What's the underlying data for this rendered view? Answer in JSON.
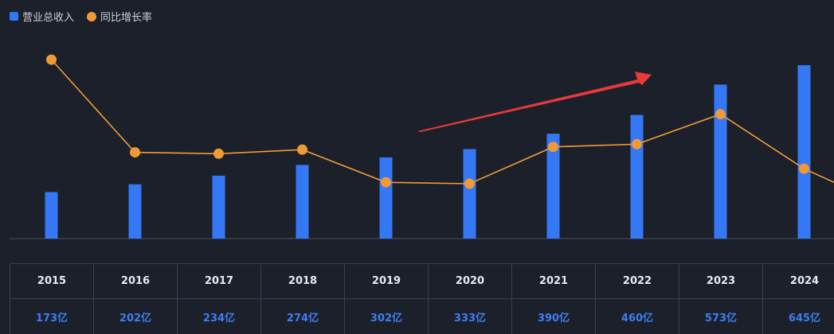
{
  "legend": {
    "revenue_label": "营业总收入",
    "growth_label": "同比增长率"
  },
  "colors": {
    "background": "#1b202b",
    "bar": "#3478f6",
    "line": "#f09a37",
    "arrow": "#e63a3a",
    "value_text": "#3f7ef0",
    "grid_border": "#3a404c"
  },
  "table": {
    "years": [
      "2015",
      "2016",
      "2017",
      "2018",
      "2019",
      "2020",
      "2021",
      "2022",
      "2023",
      "2024"
    ],
    "values": [
      "173亿",
      "202亿",
      "234亿",
      "274亿",
      "302亿",
      "333亿",
      "390亿",
      "460亿",
      "573亿",
      "645亿"
    ]
  },
  "chart_data": {
    "type": "bar",
    "categories": [
      "2015",
      "2016",
      "2017",
      "2018",
      "2019",
      "2020",
      "2021",
      "2022",
      "2023",
      "2024"
    ],
    "series": [
      {
        "name": "营业总收入",
        "type": "bar",
        "unit": "亿",
        "values": [
          173,
          202,
          234,
          274,
          302,
          333,
          390,
          460,
          573,
          645
        ]
      },
      {
        "name": "同比增长率",
        "type": "line",
        "values": [
          65,
          31,
          30.5,
          32,
          20,
          19.5,
          33,
          34,
          45,
          25
        ]
      }
    ],
    "extra_line_end": 20,
    "ylim_bar": [
      0,
      720
    ],
    "ylim_line": [
      0,
      85
    ],
    "legend_position": "top-left",
    "grid": false,
    "annotation": "upward-arrow"
  }
}
